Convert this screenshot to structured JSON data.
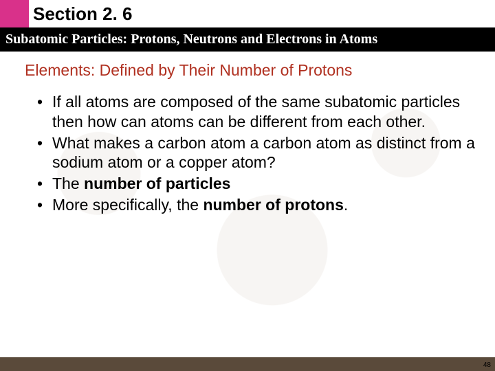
{
  "header": {
    "section_label": "Section 2. 6",
    "section_label_fontsize": 26,
    "section_label_weight": "bold",
    "section_label_color": "#000000",
    "accent_color": "#d9318a",
    "subtitle": "Subatomic Particles: Protons, Neutrons and Electrons in Atoms",
    "subtitle_fontsize": 20,
    "subtitle_bg": "#000000",
    "subtitle_color": "#ffffff",
    "subtitle_font": "Times New Roman, serif",
    "subtitle_weight": "bold"
  },
  "subheading": {
    "text": "Elements:  Defined by Their Number of Protons",
    "color": "#b03020",
    "fontsize": 23
  },
  "bullets": {
    "fontsize": 23,
    "color": "#000000",
    "line_height": 1.25,
    "items": [
      {
        "html": "If all atoms are composed of the same subatomic particles then how can atoms can be different from each other."
      },
      {
        "html": "What makes a carbon atom a carbon atom as distinct from a sodium atom or a copper atom?"
      },
      {
        "html": "The <b>number of particles</b>"
      },
      {
        "html": "More specifically, the <b>number of protons</b>."
      }
    ]
  },
  "footer": {
    "page_number": "48",
    "page_number_fontsize": 10,
    "bar_color": "#5a4a3a"
  }
}
